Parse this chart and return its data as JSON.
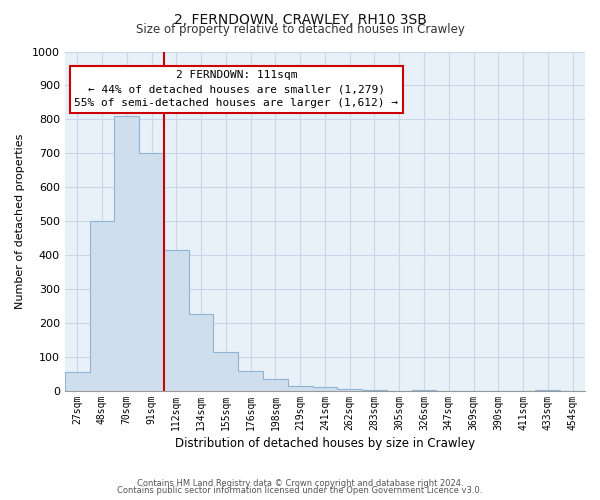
{
  "title": "2, FERNDOWN, CRAWLEY, RH10 3SB",
  "subtitle": "Size of property relative to detached houses in Crawley",
  "xlabel": "Distribution of detached houses by size in Crawley",
  "ylabel": "Number of detached properties",
  "bar_labels": [
    "27sqm",
    "48sqm",
    "70sqm",
    "91sqm",
    "112sqm",
    "134sqm",
    "155sqm",
    "176sqm",
    "198sqm",
    "219sqm",
    "241sqm",
    "262sqm",
    "283sqm",
    "305sqm",
    "326sqm",
    "347sqm",
    "369sqm",
    "390sqm",
    "411sqm",
    "433sqm",
    "454sqm"
  ],
  "bar_values": [
    55,
    500,
    810,
    700,
    415,
    225,
    115,
    57,
    35,
    14,
    10,
    5,
    3,
    0,
    2,
    0,
    0,
    0,
    0,
    1,
    0
  ],
  "bar_fill_color": "#cfdeed",
  "bar_edge_color": "#8fb4d4",
  "vline_x_index": 4,
  "vline_color": "#cc0000",
  "ylim": [
    0,
    1000
  ],
  "yticks": [
    0,
    100,
    200,
    300,
    400,
    500,
    600,
    700,
    800,
    900,
    1000
  ],
  "annotation_title": "2 FERNDOWN: 111sqm",
  "annotation_line1": "← 44% of detached houses are smaller (1,279)",
  "annotation_line2": "55% of semi-detached houses are larger (1,612) →",
  "annotation_box_color": "#ffffff",
  "annotation_box_edge": "#cc0000",
  "footer_line1": "Contains HM Land Registry data © Crown copyright and database right 2024.",
  "footer_line2": "Contains public sector information licensed under the Open Government Licence v3.0.",
  "grid_color": "#c8d8e8",
  "background_color": "#e8f0f8"
}
